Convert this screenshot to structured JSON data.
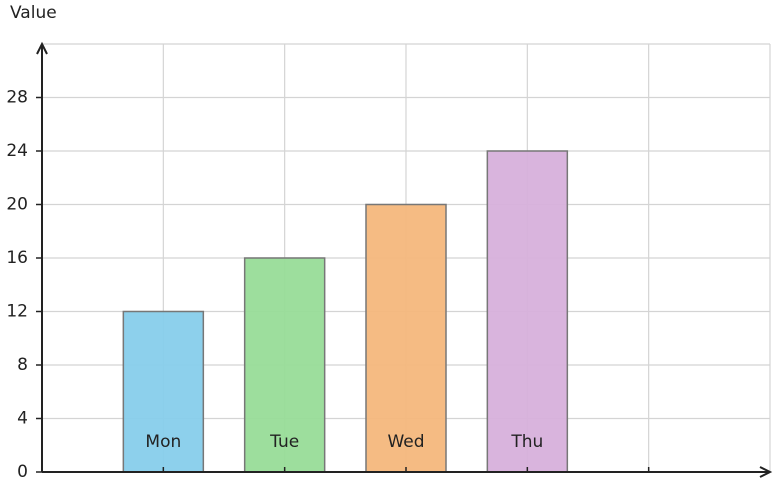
{
  "chart_data": {
    "type": "bar",
    "y_label": "Value",
    "categories": [
      "Mon",
      "Tue",
      "Wed",
      "Thu",
      null
    ],
    "values": [
      12,
      16,
      20,
      24,
      null
    ],
    "colors": [
      "#87ceeb",
      "#98dc98",
      "#f4b77c",
      "#d7b0db",
      null
    ],
    "ylim": [
      0,
      32
    ],
    "yticks": [
      0,
      4,
      8,
      12,
      16,
      20,
      24,
      28
    ],
    "grid": true
  }
}
